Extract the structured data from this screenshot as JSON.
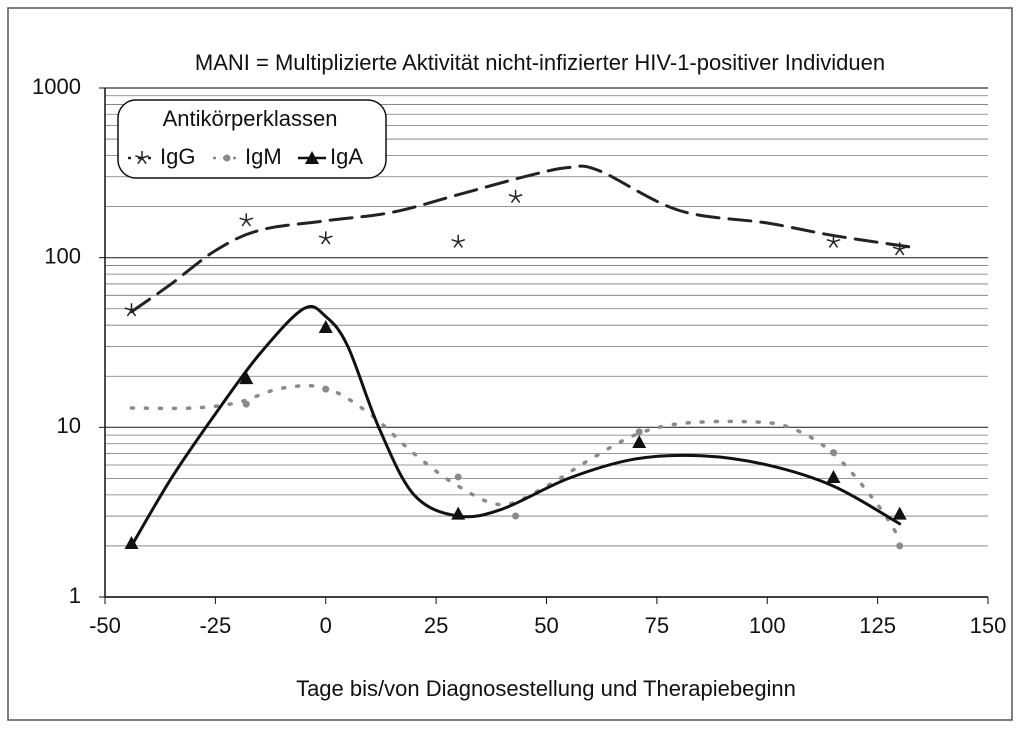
{
  "chart_data": {
    "type": "scatter",
    "title": "MANI = Multiplizierte Aktivität nicht-infizierter HIV-1-positiver Individuen",
    "x_label": "Tage bis/von Diagnosestellung und Therapiebeginn",
    "legend_title": "Antikörperklassen",
    "legend": "top-left",
    "log_y": true,
    "grid": true,
    "xlim": [
      -50,
      150
    ],
    "xticks": [
      -50,
      -25,
      0,
      25,
      50,
      75,
      100,
      125,
      150
    ],
    "ylim": [
      1,
      1000
    ],
    "yticks": [
      1,
      10,
      100,
      1000
    ],
    "yminorticks": [
      2,
      3,
      4,
      5,
      6,
      7,
      8,
      9,
      20,
      30,
      40,
      50,
      60,
      70,
      80,
      90,
      200,
      300,
      400,
      500,
      600,
      700,
      800,
      900
    ],
    "series": [
      {
        "name": "IgG",
        "color": "#222222",
        "marker": "star",
        "line_style": "dashed",
        "x": [
          -44,
          -18,
          0,
          30,
          43,
          115,
          130
        ],
        "values": [
          49,
          166,
          130,
          124,
          228,
          124,
          112
        ],
        "trend": {
          "x": [
            -44,
            -35,
            -25,
            -15,
            0,
            15,
            30,
            45,
            55,
            62,
            80,
            100,
            115,
            133
          ],
          "values": [
            48,
            70,
            110,
            145,
            165,
            185,
            235,
            300,
            340,
            325,
            190,
            160,
            135,
            115
          ]
        }
      },
      {
        "name": "IgM",
        "color": "#8a8a8a",
        "marker": "dot",
        "line_style": "dotted",
        "x": [
          -18,
          0,
          30,
          43,
          71,
          115,
          130
        ],
        "values": [
          13.7,
          16.8,
          5.1,
          3.0,
          9.4,
          7.1,
          2.0
        ],
        "trend": {
          "x": [
            -44,
            -30,
            -20,
            -10,
            0,
            10,
            20,
            30,
            40,
            50,
            60,
            70,
            80,
            95,
            105,
            115,
            125,
            130
          ],
          "values": [
            13,
            13,
            14,
            17,
            17,
            12,
            7,
            4.5,
            3.5,
            4.5,
            6.5,
            9,
            10.5,
            10.8,
            10,
            7,
            3.5,
            2.2
          ]
        }
      },
      {
        "name": "IgA",
        "color": "#111111",
        "marker": "triangle",
        "line_style": "solid",
        "x": [
          -44,
          -18,
          0,
          30,
          71,
          115,
          130
        ],
        "values": [
          2.08,
          19.5,
          39,
          3.1,
          8.2,
          5.1,
          3.1
        ],
        "trend": {
          "x": [
            -44,
            -35,
            -25,
            -15,
            -5,
            0,
            5,
            12,
            20,
            30,
            40,
            55,
            70,
            85,
            100,
            115,
            130
          ],
          "values": [
            2,
            5,
            12,
            27,
            50,
            45,
            30,
            10,
            4,
            3,
            3.3,
            5,
            6.5,
            6.8,
            6,
            4.5,
            2.7
          ]
        }
      }
    ]
  }
}
